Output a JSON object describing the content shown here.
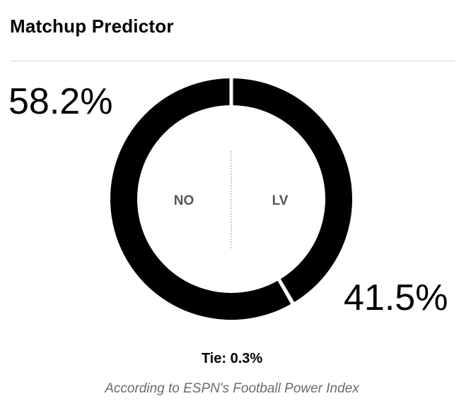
{
  "header": {
    "title": "Matchup Predictor"
  },
  "chart_data": {
    "type": "pie",
    "style": "donut",
    "slices": [
      {
        "label": "NO",
        "value": 58.2,
        "display": "58.2%"
      },
      {
        "label": "LV",
        "value": 41.5,
        "display": "41.5%"
      },
      {
        "label": "Tie",
        "value": 0.3
      }
    ],
    "colors": {
      "NO": "#000000",
      "LV": "#000000",
      "separator": "#ffffff",
      "team_label": "#555555"
    }
  },
  "tie": {
    "label": "Tie:",
    "value": "0.3%"
  },
  "source": {
    "text": "According to ESPN's Football Power Index"
  }
}
